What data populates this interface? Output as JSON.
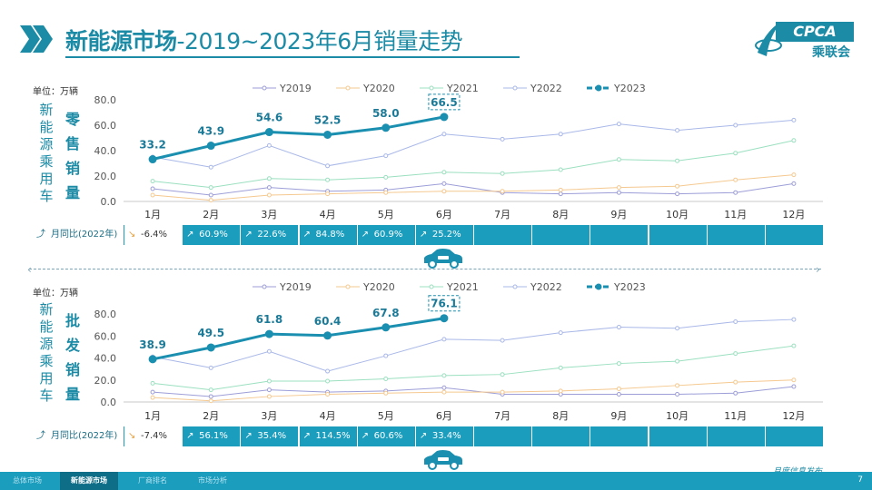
{
  "header": {
    "title_main": "新能源市场",
    "title_rest": "-2019~2023年6月销量走势",
    "logo_text": "CPCA",
    "logo_sub": "乘联会"
  },
  "colors": {
    "accent": "#1b8ba6",
    "bar": "#1b9dbe",
    "y2019": "#9d9ed8",
    "y2020": "#f5c990",
    "y2021": "#9be0c0",
    "y2022": "#a9b8e8",
    "y2023": "#1b8fb0"
  },
  "top": {
    "unit": "单位：万辆",
    "side_label": [
      "新",
      "能",
      "源",
      "乘",
      "用",
      "车"
    ],
    "side_label2": [
      "零",
      "售",
      "销",
      "量"
    ],
    "yoy_label": "月同比(2022年)",
    "yoy": [
      "-6.4%",
      "60.9%",
      "22.6%",
      "84.8%",
      "60.9%",
      "25.2%",
      "",
      "",
      "",
      "",
      "",
      ""
    ]
  },
  "bottom": {
    "unit": "单位：万辆",
    "side_label": [
      "新",
      "能",
      "源",
      "乘",
      "用",
      "车"
    ],
    "side_label2": [
      "批",
      "发",
      "销",
      "量"
    ],
    "yoy_label": "月同比(2022年)",
    "yoy": [
      "-7.4%",
      "56.1%",
      "35.4%",
      "114.5%",
      "60.6%",
      "33.4%",
      "",
      "",
      "",
      "",
      "",
      ""
    ]
  },
  "chart_data": [
    {
      "type": "line",
      "title": "零售销量",
      "categories": [
        "1月",
        "2月",
        "3月",
        "4月",
        "5月",
        "6月",
        "7月",
        "8月",
        "9月",
        "10月",
        "11月",
        "12月"
      ],
      "ylim": [
        0,
        80
      ],
      "yticks": [
        "0.0",
        "20.0",
        "40.0",
        "60.0",
        "80.0"
      ],
      "legend_position": "top",
      "series": [
        {
          "name": "Y2019",
          "values": [
            10,
            5,
            11,
            8,
            9,
            14,
            7,
            6,
            7,
            6,
            7,
            14
          ]
        },
        {
          "name": "Y2020",
          "values": [
            5,
            1,
            5,
            6,
            7,
            8,
            8,
            9,
            11,
            12,
            17,
            21
          ]
        },
        {
          "name": "Y2021",
          "values": [
            16,
            11,
            18,
            17,
            19,
            23,
            22,
            25,
            33,
            32,
            38,
            48
          ]
        },
        {
          "name": "Y2022",
          "values": [
            35,
            27,
            44,
            28,
            36,
            53,
            49,
            53,
            61,
            56,
            60,
            64
          ]
        },
        {
          "name": "Y2023",
          "values": [
            33.2,
            43.9,
            54.6,
            52.5,
            58.0,
            66.5
          ]
        }
      ],
      "labels": [
        "33.2",
        "43.9",
        "54.6",
        "52.5",
        "58.0",
        "66.5"
      ]
    },
    {
      "type": "line",
      "title": "批发销量",
      "categories": [
        "1月",
        "2月",
        "3月",
        "4月",
        "5月",
        "6月",
        "7月",
        "8月",
        "9月",
        "10月",
        "11月",
        "12月"
      ],
      "ylim": [
        0,
        80
      ],
      "yticks": [
        "0.0",
        "20.0",
        "40.0",
        "60.0",
        "80.0"
      ],
      "legend_position": "top",
      "series": [
        {
          "name": "Y2019",
          "values": [
            9,
            5,
            11,
            9,
            10,
            13,
            7,
            7,
            7,
            7,
            8,
            14
          ]
        },
        {
          "name": "Y2020",
          "values": [
            4,
            1,
            5,
            7,
            8,
            9,
            9,
            10,
            12,
            15,
            18,
            20
          ]
        },
        {
          "name": "Y2021",
          "values": [
            17,
            11,
            19,
            19,
            21,
            24,
            25,
            31,
            35,
            37,
            44,
            51
          ]
        },
        {
          "name": "Y2022",
          "values": [
            41,
            31,
            46,
            28,
            42,
            57,
            56,
            63,
            68,
            67,
            73,
            75
          ]
        },
        {
          "name": "Y2023",
          "values": [
            38.9,
            49.5,
            61.8,
            60.4,
            67.8,
            76.1
          ]
        }
      ],
      "labels": [
        "38.9",
        "49.5",
        "61.8",
        "60.4",
        "67.8",
        "76.1"
      ]
    }
  ],
  "footer": {
    "tabs": [
      "总体市场",
      "新能源市场",
      "厂商排名",
      "市场分析"
    ],
    "active_tab": 1,
    "slogan": "月度信息发布",
    "page": "7"
  }
}
